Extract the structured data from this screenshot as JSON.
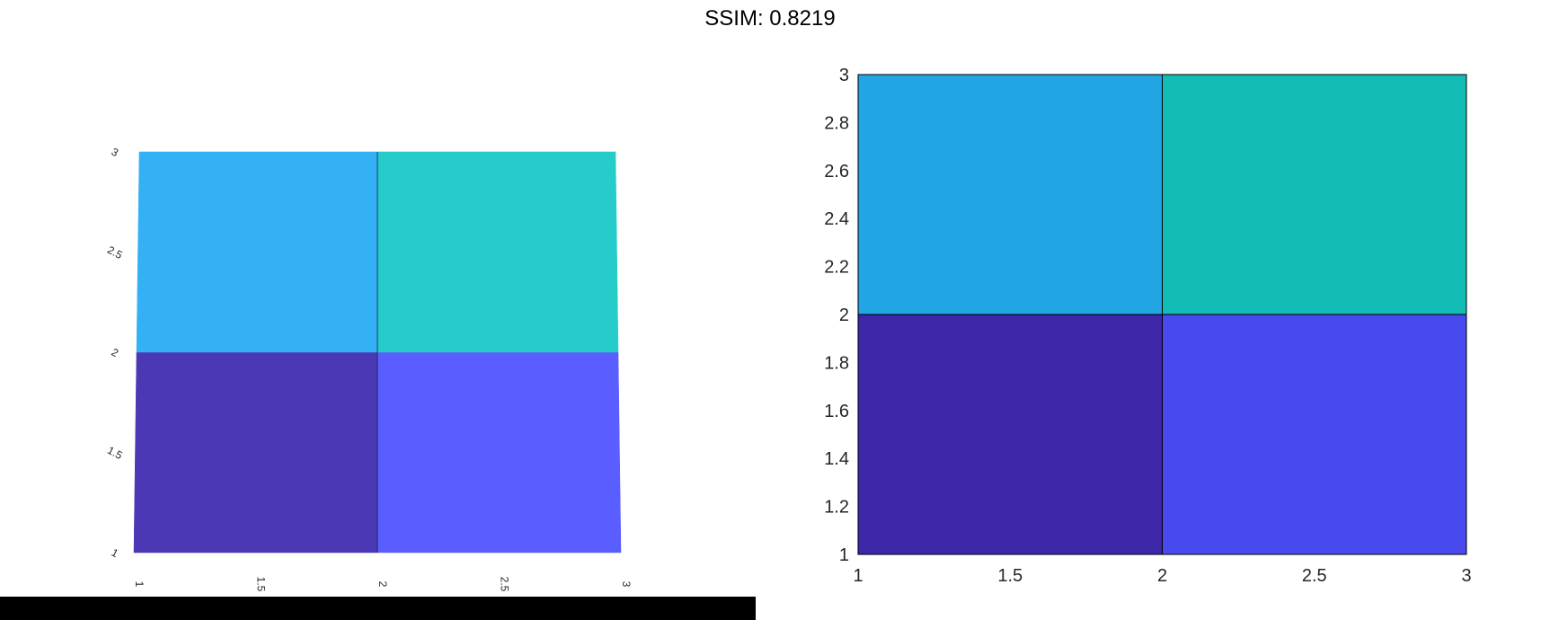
{
  "title": "SSIM: 0.8219",
  "colors": {
    "left_cells": [
      "#4b38b5",
      "#5a5dff",
      "#33b1f4",
      "#25ccca"
    ],
    "right_cells": [
      "#3e26a8",
      "#484aee",
      "#21a5e3",
      "#13bdb6"
    ],
    "cell_edge": "#000000",
    "bottom_bar": "#000000"
  },
  "chart_data": [
    {
      "type": "heatmap",
      "title": "",
      "x": [
        1,
        2,
        3
      ],
      "y": [
        1,
        2,
        3
      ],
      "cells": [
        {
          "x0": 1,
          "x1": 2,
          "y0": 1,
          "y1": 2
        },
        {
          "x0": 2,
          "x1": 3,
          "y0": 1,
          "y1": 2
        },
        {
          "x0": 1,
          "x1": 2,
          "y0": 2,
          "y1": 3
        },
        {
          "x0": 2,
          "x1": 3,
          "y0": 2,
          "y1": 3
        }
      ],
      "xlim": [
        1,
        3
      ],
      "ylim": [
        1,
        3
      ],
      "xticks": [
        "1",
        "1.5",
        "2",
        "2.5",
        "3"
      ],
      "yticks": [
        "1",
        "1.5",
        "2",
        "2.5",
        "3"
      ],
      "xlabel": "",
      "ylabel": "",
      "grid": false,
      "view": "perspective-tilted"
    },
    {
      "type": "heatmap",
      "title": "",
      "x": [
        1,
        2,
        3
      ],
      "y": [
        1,
        2,
        3
      ],
      "cells": [
        {
          "x0": 1,
          "x1": 2,
          "y0": 1,
          "y1": 2
        },
        {
          "x0": 2,
          "x1": 3,
          "y0": 1,
          "y1": 2
        },
        {
          "x0": 1,
          "x1": 2,
          "y0": 2,
          "y1": 3
        },
        {
          "x0": 2,
          "x1": 3,
          "y0": 2,
          "y1": 3
        }
      ],
      "xlim": [
        1,
        3
      ],
      "ylim": [
        1,
        3
      ],
      "xticks": [
        "1",
        "1.5",
        "2",
        "2.5",
        "3"
      ],
      "yticks": [
        "1",
        "1.2",
        "1.4",
        "1.6",
        "1.8",
        "2",
        "2.2",
        "2.4",
        "2.6",
        "2.8",
        "3"
      ],
      "xlabel": "",
      "ylabel": "",
      "grid": false
    }
  ]
}
